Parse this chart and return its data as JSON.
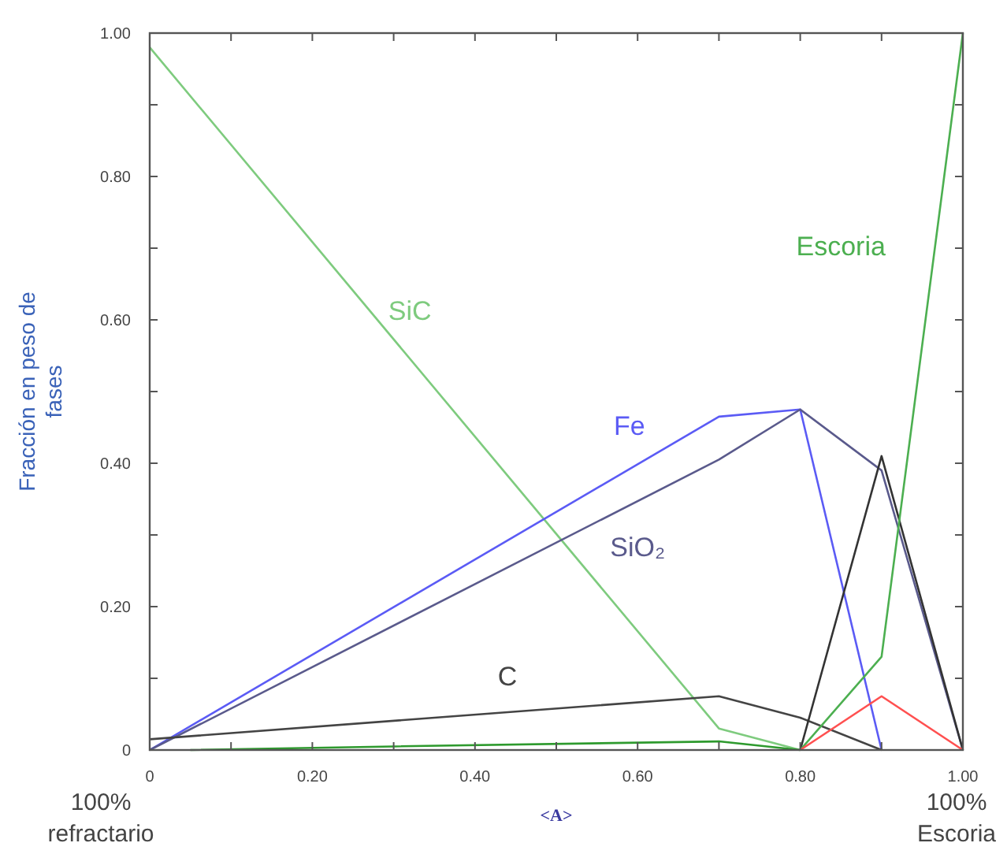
{
  "chart_data": {
    "type": "line",
    "ylabel": "Fracción en peso de fases",
    "xlabel": "<A>",
    "xlim": [
      0,
      1
    ],
    "ylim": [
      0,
      1
    ],
    "xticks": [
      {
        "value": 0,
        "label": "0"
      },
      {
        "value": 0.1,
        "label": null
      },
      {
        "value": 0.2,
        "label": "0.20"
      },
      {
        "value": 0.3,
        "label": null
      },
      {
        "value": 0.4,
        "label": "0.40"
      },
      {
        "value": 0.5,
        "label": null
      },
      {
        "value": 0.6,
        "label": "0.60"
      },
      {
        "value": 0.7,
        "label": null
      },
      {
        "value": 0.8,
        "label": "0.80"
      },
      {
        "value": 0.9,
        "label": null
      },
      {
        "value": 1,
        "label": "1.00"
      }
    ],
    "yticks": [
      {
        "value": 0,
        "label": "0"
      },
      {
        "value": 0.1,
        "label": null
      },
      {
        "value": 0.2,
        "label": "0.20"
      },
      {
        "value": 0.3,
        "label": null
      },
      {
        "value": 0.4,
        "label": "0.40"
      },
      {
        "value": 0.5,
        "label": null
      },
      {
        "value": 0.6,
        "label": "0.60"
      },
      {
        "value": 0.7,
        "label": null
      },
      {
        "value": 0.8,
        "label": "0.80"
      },
      {
        "value": 0.9,
        "label": null
      },
      {
        "value": 1,
        "label": "1.00"
      }
    ],
    "grid": false,
    "marker": "none",
    "line_style": "solid",
    "series": [
      {
        "name": "SiC",
        "color": "#7ecb7e",
        "x": [
          0,
          0.7,
          0.8
        ],
        "values": [
          0.98,
          0.03,
          0
        ]
      },
      {
        "name": "Fe",
        "color": "#5b5bf5",
        "x": [
          0,
          0.7,
          0.8,
          0.9
        ],
        "values": [
          0,
          0.465,
          0.475,
          0
        ]
      },
      {
        "name": "SiO₂",
        "color": "#5a5a8c",
        "x": [
          0,
          0.7,
          0.8,
          0.9,
          1
        ],
        "values": [
          0,
          0.405,
          0.475,
          0.39,
          0
        ]
      },
      {
        "name": "C",
        "color": "#444444",
        "x": [
          0,
          0.7,
          0.8,
          0.9
        ],
        "values": [
          0.015,
          0.075,
          0.045,
          0
        ]
      },
      {
        "color": "#333333",
        "x": [
          0.8,
          0.9,
          1
        ],
        "values": [
          0,
          0.41,
          0
        ]
      },
      {
        "name": "Escoria",
        "color": "#4caf50",
        "x": [
          0.8,
          0.9,
          1
        ],
        "values": [
          0,
          0.13,
          1
        ]
      },
      {
        "color": "#ff5050",
        "x": [
          0.8,
          0.9,
          1
        ],
        "values": [
          0,
          0.075,
          0
        ]
      },
      {
        "color": "#2e9a2e",
        "x": [
          0.05,
          0.3,
          0.7,
          0.8
        ],
        "values": [
          0,
          0.005,
          0.012,
          0
        ]
      }
    ],
    "annotations": [
      "100% refractario",
      "100% Escoria"
    ]
  }
}
